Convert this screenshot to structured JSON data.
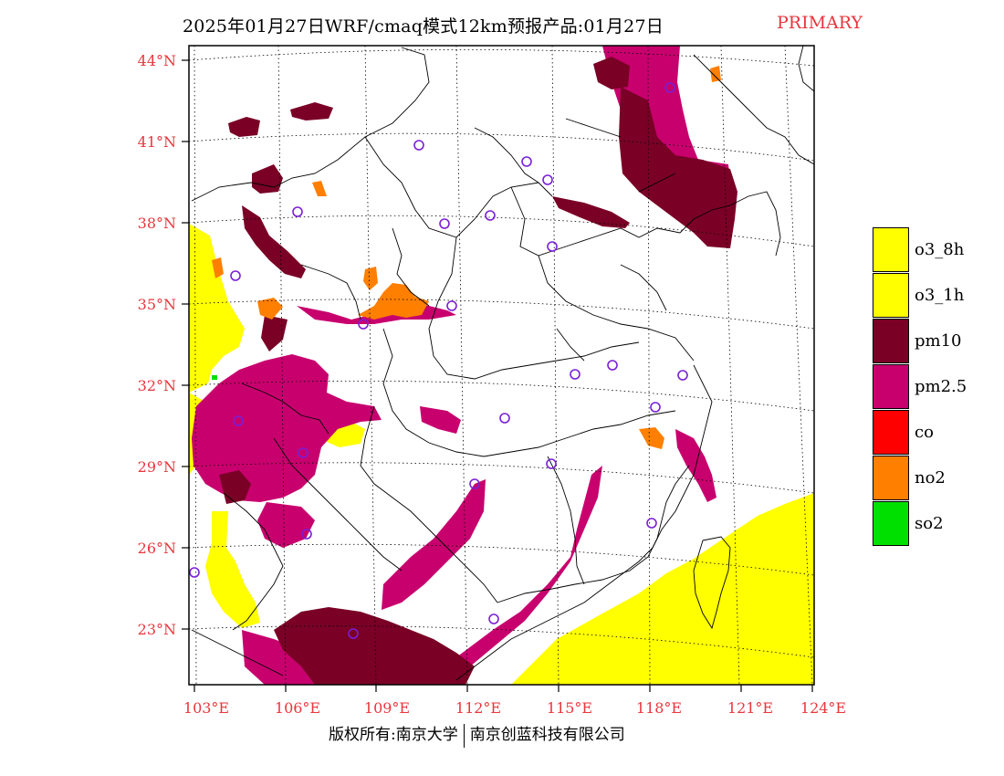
{
  "header": {
    "title": "2025年01月27日WRF/cmaq模式12km预报产品:01月27日",
    "tag": "PRIMARY",
    "tag_color": "#e8363d"
  },
  "map": {
    "lat_labels": [
      "44°N",
      "41°N",
      "38°N",
      "35°N",
      "32°N",
      "29°N",
      "26°N",
      "23°N"
    ],
    "lon_labels": [
      "103°E",
      "106°E",
      "109°E",
      "112°E",
      "115°E",
      "118°E",
      "121°E",
      "124°E"
    ],
    "axis_label_color": "#e8363d",
    "extent": {
      "lon_min": 103,
      "lon_max": 124,
      "lat_min": 21,
      "lat_max": 44.5
    }
  },
  "legend": {
    "items": [
      {
        "label": "o3_8h",
        "color": "#ffff00"
      },
      {
        "label": "o3_1h",
        "color": "#ffff00"
      },
      {
        "label": "pm10",
        "color": "#7a0026"
      },
      {
        "label": "pm2.5",
        "color": "#c8006e"
      },
      {
        "label": "co",
        "color": "#ff0000"
      },
      {
        "label": "no2",
        "color": "#ff7f00"
      },
      {
        "label": "so2",
        "color": "#00e000"
      }
    ]
  },
  "footer": {
    "left": "版权所有:南京大学",
    "right": "南京创蓝科技有限公司"
  }
}
